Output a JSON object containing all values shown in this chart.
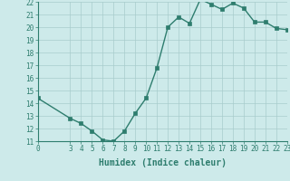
{
  "x": [
    0,
    3,
    4,
    5,
    6,
    7,
    8,
    9,
    10,
    11,
    12,
    13,
    14,
    15,
    16,
    17,
    18,
    19,
    20,
    21,
    22,
    23
  ],
  "y": [
    14.4,
    12.8,
    12.4,
    11.8,
    11.1,
    11.0,
    11.8,
    13.2,
    14.4,
    16.8,
    20.0,
    20.8,
    20.3,
    22.2,
    21.8,
    21.4,
    21.9,
    21.5,
    20.4,
    20.4,
    19.9,
    19.8
  ],
  "line_color": "#2e7d6e",
  "bg_color": "#cdeaea",
  "grid_color": "#a8cccc",
  "xlabel": "Humidex (Indice chaleur)",
  "xlim": [
    0,
    23
  ],
  "ylim": [
    11,
    22
  ],
  "yticks": [
    11,
    12,
    13,
    14,
    15,
    16,
    17,
    18,
    19,
    20,
    21,
    22
  ],
  "xticks": [
    0,
    3,
    4,
    5,
    6,
    7,
    8,
    9,
    10,
    11,
    12,
    13,
    14,
    15,
    16,
    17,
    18,
    19,
    20,
    21,
    22,
    23
  ],
  "markersize": 2.5,
  "linewidth": 1.0,
  "label_fontsize": 7,
  "tick_fontsize": 5.5
}
